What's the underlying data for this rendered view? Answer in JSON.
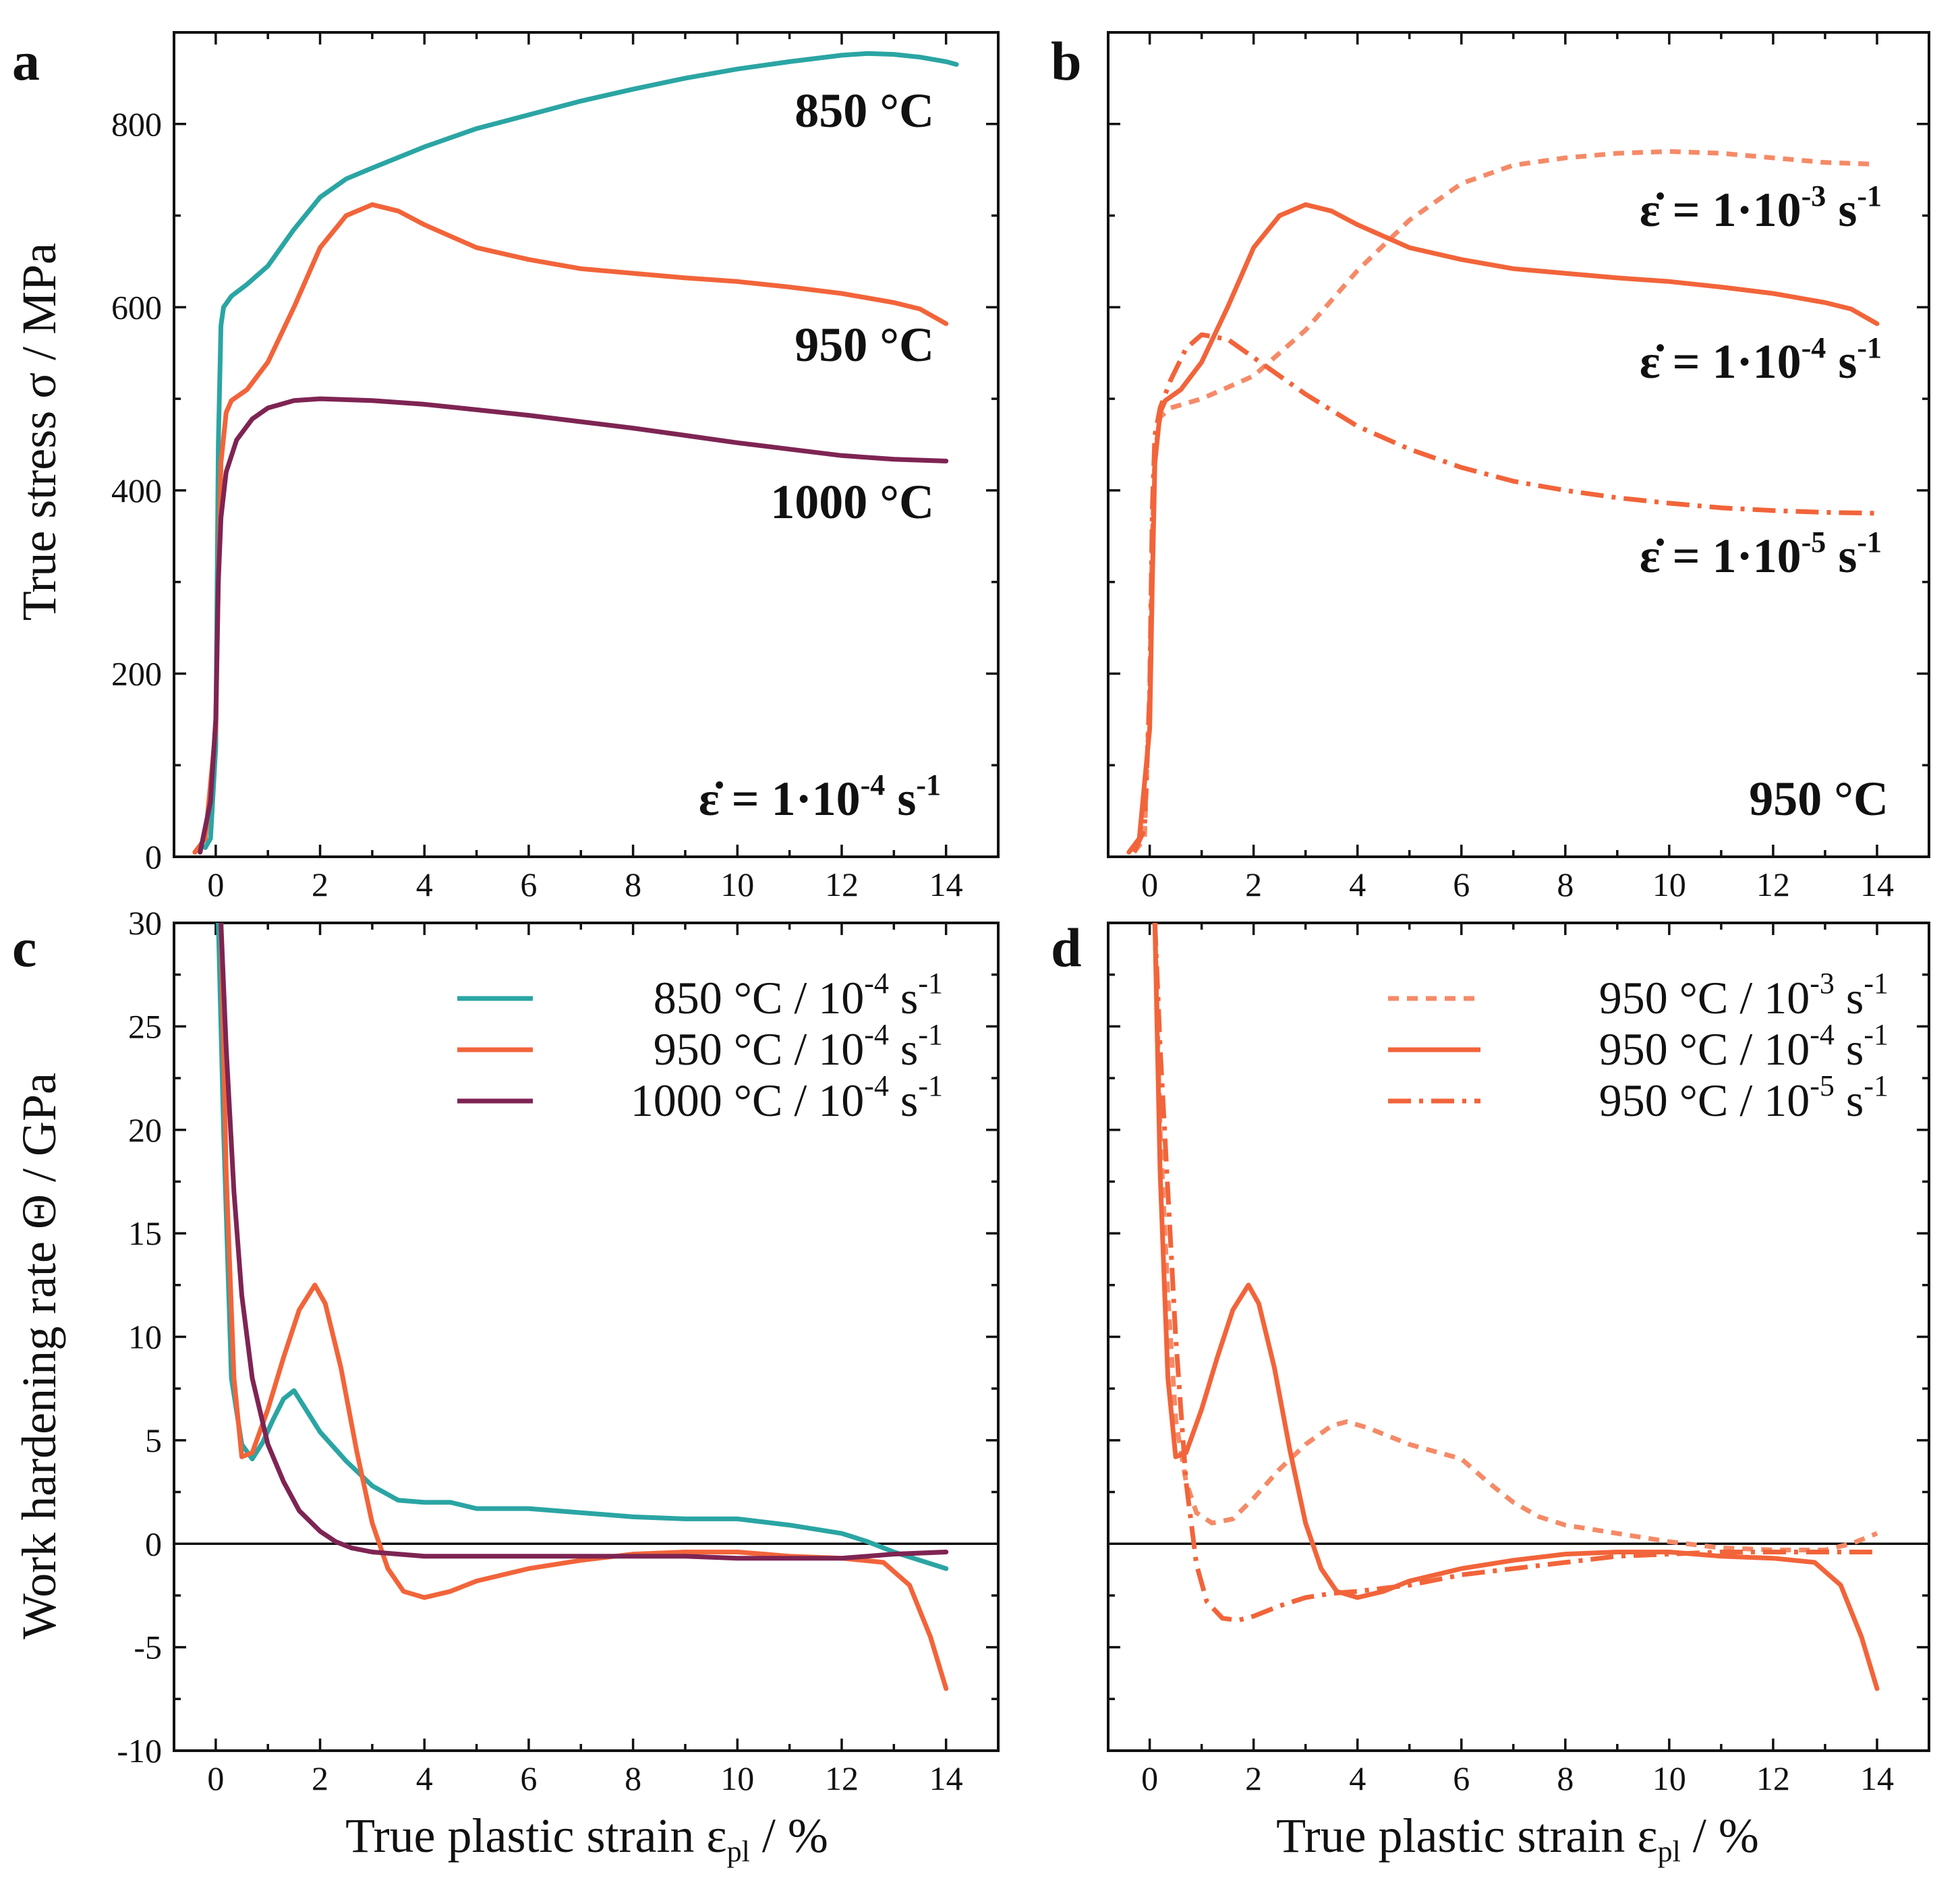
{
  "colors": {
    "850": "#2aa5a3",
    "950": "#f2643a",
    "1000": "#7e2453",
    "950_light": "#f58a67",
    "axis": "#111111"
  },
  "x_axis_label": "True plastic strain ε",
  "x_axis_label_sub": "pl",
  "x_axis_label_unit": " / %",
  "chart_data": [
    {
      "panel": "a",
      "type": "line",
      "xlim": [
        -0.8,
        15
      ],
      "ylim": [
        0,
        900
      ],
      "x_ticks": [
        0,
        2,
        4,
        6,
        8,
        10,
        12,
        14
      ],
      "y_ticks": [
        0,
        200,
        400,
        600,
        800
      ],
      "ylabel": "True stress σ / MPa",
      "annotations": [
        {
          "text": "850 °C",
          "series": "850"
        },
        {
          "text": "950 °C",
          "series": "950"
        },
        {
          "text": "1000 °C",
          "series": "1000"
        },
        {
          "text_main": "ε̇ = 1·10",
          "text_sup": "-4",
          "text_tail": " s",
          "text_tail_sup": "-1"
        }
      ],
      "series": [
        {
          "key": "850",
          "style": "solid",
          "x": [
            -0.2,
            -0.1,
            0.0,
            0.05,
            0.1,
            0.15,
            0.3,
            0.6,
            1.0,
            1.5,
            2.0,
            2.5,
            3.0,
            4.0,
            5.0,
            6.0,
            7.0,
            8.0,
            9.0,
            10.0,
            11.0,
            12.0,
            12.5,
            13.0,
            13.5,
            14.0,
            14.2
          ],
          "y": [
            10,
            20,
            120,
            450,
            580,
            600,
            612,
            625,
            645,
            685,
            720,
            740,
            752,
            775,
            795,
            810,
            825,
            838,
            850,
            860,
            868,
            875,
            877,
            876,
            873,
            868,
            865
          ]
        },
        {
          "key": "950",
          "style": "solid",
          "x": [
            -0.4,
            -0.2,
            0.0,
            0.05,
            0.1,
            0.2,
            0.3,
            0.6,
            1.0,
            1.5,
            2.0,
            2.5,
            3.0,
            3.5,
            4.0,
            5.0,
            6.0,
            7.0,
            8.0,
            9.0,
            10.0,
            11.0,
            12.0,
            13.0,
            13.5,
            14.0
          ],
          "y": [
            5,
            20,
            140,
            300,
            430,
            485,
            498,
            510,
            540,
            600,
            665,
            700,
            712,
            705,
            690,
            665,
            652,
            642,
            637,
            632,
            628,
            622,
            615,
            605,
            598,
            582
          ]
        },
        {
          "key": "1000",
          "style": "solid",
          "x": [
            -0.3,
            -0.1,
            0.0,
            0.05,
            0.1,
            0.2,
            0.4,
            0.7,
            1.0,
            1.5,
            2.0,
            3.0,
            4.0,
            5.0,
            6.0,
            7.0,
            8.0,
            9.0,
            10.0,
            11.0,
            12.0,
            13.0,
            14.0
          ],
          "y": [
            5,
            60,
            150,
            300,
            370,
            420,
            455,
            478,
            490,
            498,
            500,
            498,
            494,
            488,
            482,
            475,
            468,
            460,
            452,
            445,
            438,
            434,
            432
          ]
        }
      ]
    },
    {
      "panel": "b",
      "type": "line",
      "xlim": [
        -0.8,
        15
      ],
      "ylim": [
        0,
        900
      ],
      "x_ticks": [
        0,
        2,
        4,
        6,
        8,
        10,
        12,
        14
      ],
      "y_ticks": [
        0,
        200,
        400,
        600,
        800
      ],
      "annotations": [
        {
          "text_main": "ε̇ = 1·10",
          "text_sup": "-3",
          "text_tail": " s",
          "text_tail_sup": "-1",
          "series": "1e-3"
        },
        {
          "text_main": "ε̇ = 1·10",
          "text_sup": "-4",
          "text_tail": " s",
          "text_tail_sup": "-1",
          "series": "1e-4"
        },
        {
          "text_main": "ε̇ = 1·10",
          "text_sup": "-5",
          "text_tail": " s",
          "text_tail_sup": "-1",
          "series": "1e-5"
        },
        {
          "text": "950 °C"
        }
      ],
      "series": [
        {
          "key": "1e-3",
          "style": "dashed",
          "x": [
            -0.3,
            -0.1,
            0.0,
            0.05,
            0.1,
            0.2,
            0.4,
            1.0,
            2.0,
            3.0,
            4.0,
            5.0,
            6.0,
            7.0,
            8.0,
            9.0,
            10.0,
            11.0,
            12.0,
            13.0,
            14.0
          ],
          "y": [
            5,
            20,
            180,
            350,
            440,
            480,
            490,
            500,
            525,
            575,
            640,
            695,
            735,
            755,
            763,
            768,
            770,
            768,
            763,
            758,
            756
          ]
        },
        {
          "key": "1e-4",
          "style": "solid",
          "x": [
            -0.4,
            -0.2,
            0.0,
            0.05,
            0.1,
            0.2,
            0.3,
            0.6,
            1.0,
            1.5,
            2.0,
            2.5,
            3.0,
            3.5,
            4.0,
            5.0,
            6.0,
            7.0,
            8.0,
            9.0,
            10.0,
            11.0,
            12.0,
            13.0,
            13.5,
            14.0
          ],
          "y": [
            5,
            20,
            140,
            300,
            430,
            485,
            498,
            510,
            540,
            600,
            665,
            700,
            712,
            705,
            690,
            665,
            652,
            642,
            637,
            632,
            628,
            622,
            615,
            605,
            598,
            582
          ]
        },
        {
          "key": "1e-5",
          "style": "dashdot",
          "x": [
            -0.3,
            -0.1,
            0.0,
            0.05,
            0.1,
            0.2,
            0.4,
            0.7,
            1.0,
            1.5,
            2.0,
            3.0,
            4.0,
            5.0,
            6.0,
            7.0,
            8.0,
            9.0,
            10.0,
            11.0,
            12.0,
            13.0,
            14.0
          ],
          "y": [
            5,
            30,
            180,
            380,
            460,
            490,
            520,
            555,
            570,
            565,
            545,
            505,
            470,
            445,
            425,
            410,
            400,
            392,
            386,
            381,
            378,
            376,
            375
          ]
        }
      ]
    },
    {
      "panel": "c",
      "type": "line",
      "xlim": [
        -0.8,
        15
      ],
      "ylim": [
        -10,
        30
      ],
      "x_ticks": [
        0,
        2,
        4,
        6,
        8,
        10,
        12,
        14
      ],
      "y_ticks": [
        -10,
        -5,
        0,
        5,
        10,
        15,
        20,
        25,
        30
      ],
      "ylabel": "Work hardening rate Θ / GPa",
      "legend": [
        {
          "series": "850",
          "text_main": "850 °C / 10",
          "text_sup": "-4",
          "text_tail": " s",
          "text_tail_sup": "-1"
        },
        {
          "series": "950",
          "text_main": "950 °C / 10",
          "text_sup": "-4",
          "text_tail": " s",
          "text_tail_sup": "-1"
        },
        {
          "series": "1000",
          "text_main": "1000 °C / 10",
          "text_sup": "-4",
          "text_tail": " s",
          "text_tail_sup": "-1"
        }
      ],
      "series": [
        {
          "key": "850",
          "style": "solid",
          "x": [
            0.05,
            0.15,
            0.3,
            0.5,
            0.7,
            0.9,
            1.1,
            1.3,
            1.5,
            1.7,
            2.0,
            2.5,
            3.0,
            3.5,
            4.0,
            4.5,
            5.0,
            6.0,
            7.0,
            8.0,
            9.0,
            10.0,
            11.0,
            12.0,
            12.5,
            13.0,
            13.5,
            14.0
          ],
          "y": [
            30,
            20,
            8,
            4.8,
            4.1,
            4.9,
            6.0,
            7.0,
            7.4,
            6.6,
            5.4,
            4.0,
            2.8,
            2.1,
            2.0,
            2.0,
            1.7,
            1.7,
            1.5,
            1.3,
            1.2,
            1.2,
            0.9,
            0.5,
            0.1,
            -0.4,
            -0.8,
            -1.2
          ]
        },
        {
          "key": "950",
          "style": "solid",
          "x": [
            0.1,
            0.2,
            0.35,
            0.5,
            0.7,
            1.0,
            1.3,
            1.6,
            1.9,
            2.1,
            2.4,
            2.7,
            3.0,
            3.3,
            3.6,
            4.0,
            4.5,
            5.0,
            6.0,
            7.0,
            8.0,
            9.0,
            10.0,
            11.0,
            12.0,
            12.8,
            13.3,
            13.7,
            14.0
          ],
          "y": [
            30,
            18,
            8,
            4.2,
            4.4,
            6.5,
            9.0,
            11.3,
            12.5,
            11.6,
            8.5,
            4.5,
            1.0,
            -1.2,
            -2.3,
            -2.6,
            -2.3,
            -1.8,
            -1.2,
            -0.8,
            -0.5,
            -0.4,
            -0.4,
            -0.6,
            -0.7,
            -0.9,
            -2.0,
            -4.5,
            -7.0
          ]
        },
        {
          "key": "1000",
          "style": "solid",
          "x": [
            0.1,
            0.2,
            0.35,
            0.5,
            0.7,
            1.0,
            1.3,
            1.6,
            2.0,
            2.3,
            2.6,
            3.0,
            3.5,
            4.0,
            5.0,
            6.0,
            7.0,
            8.0,
            9.0,
            10.0,
            11.0,
            12.0,
            13.0,
            14.0
          ],
          "y": [
            30,
            24,
            17,
            12,
            8,
            4.8,
            3.0,
            1.6,
            0.6,
            0.1,
            -0.2,
            -0.4,
            -0.5,
            -0.6,
            -0.6,
            -0.6,
            -0.6,
            -0.6,
            -0.6,
            -0.7,
            -0.7,
            -0.7,
            -0.5,
            -0.4
          ]
        }
      ]
    },
    {
      "panel": "d",
      "type": "line",
      "xlim": [
        -0.8,
        15
      ],
      "ylim": [
        -10,
        30
      ],
      "x_ticks": [
        0,
        2,
        4,
        6,
        8,
        10,
        12,
        14
      ],
      "y_ticks": [
        -10,
        -5,
        0,
        5,
        10,
        15,
        20,
        25,
        30
      ],
      "legend": [
        {
          "series": "1e-3",
          "text_main": "950 °C / 10",
          "text_sup": "-3",
          "text_tail": " s",
          "text_tail_sup": "-1"
        },
        {
          "series": "1e-4",
          "text_main": "950 °C / 10",
          "text_sup": "-4",
          "text_tail": " s",
          "text_tail_sup": "-1"
        },
        {
          "series": "1e-5",
          "text_main": "950 °C / 10",
          "text_sup": "-5",
          "text_tail": " s",
          "text_tail_sup": "-1"
        }
      ],
      "series": [
        {
          "key": "1e-3",
          "style": "dashed",
          "x": [
            0.1,
            0.2,
            0.35,
            0.5,
            0.7,
            0.9,
            1.2,
            1.6,
            2.0,
            2.5,
            3.0,
            3.5,
            3.8,
            4.2,
            5.0,
            6.0,
            6.5,
            7.0,
            7.5,
            8.0,
            9.0,
            10.0,
            11.0,
            12.0,
            13.0,
            13.5,
            14.0
          ],
          "y": [
            30,
            20,
            12,
            6,
            3,
            1.5,
            1.0,
            1.2,
            2.2,
            3.6,
            4.8,
            5.7,
            5.9,
            5.6,
            4.8,
            4.1,
            3.0,
            2.0,
            1.3,
            0.9,
            0.5,
            0.1,
            -0.2,
            -0.3,
            -0.3,
            0.0,
            0.5
          ]
        },
        {
          "key": "1e-4",
          "style": "solid",
          "x": [
            0.1,
            0.2,
            0.35,
            0.5,
            0.7,
            1.0,
            1.3,
            1.6,
            1.9,
            2.1,
            2.4,
            2.7,
            3.0,
            3.3,
            3.6,
            4.0,
            4.5,
            5.0,
            6.0,
            7.0,
            8.0,
            9.0,
            10.0,
            11.0,
            12.0,
            12.8,
            13.3,
            13.7,
            14.0
          ],
          "y": [
            30,
            18,
            8,
            4.2,
            4.4,
            6.5,
            9.0,
            11.3,
            12.5,
            11.6,
            8.5,
            4.5,
            1.0,
            -1.2,
            -2.3,
            -2.6,
            -2.3,
            -1.8,
            -1.2,
            -0.8,
            -0.5,
            -0.4,
            -0.4,
            -0.6,
            -0.7,
            -0.9,
            -2.0,
            -4.5,
            -7.0
          ]
        },
        {
          "key": "1e-5",
          "style": "dashdot",
          "x": [
            0.1,
            0.2,
            0.35,
            0.5,
            0.7,
            0.9,
            1.1,
            1.4,
            1.7,
            2.0,
            2.5,
            3.0,
            3.5,
            4.0,
            5.0,
            6.0,
            7.0,
            8.0,
            9.0,
            10.0,
            11.0,
            12.0,
            13.0,
            14.0
          ],
          "y": [
            30,
            24,
            17,
            10,
            3,
            -1.0,
            -2.8,
            -3.6,
            -3.7,
            -3.5,
            -3.0,
            -2.6,
            -2.4,
            -2.3,
            -2.0,
            -1.5,
            -1.2,
            -0.9,
            -0.6,
            -0.5,
            -0.4,
            -0.4,
            -0.4,
            -0.4
          ]
        }
      ]
    }
  ]
}
